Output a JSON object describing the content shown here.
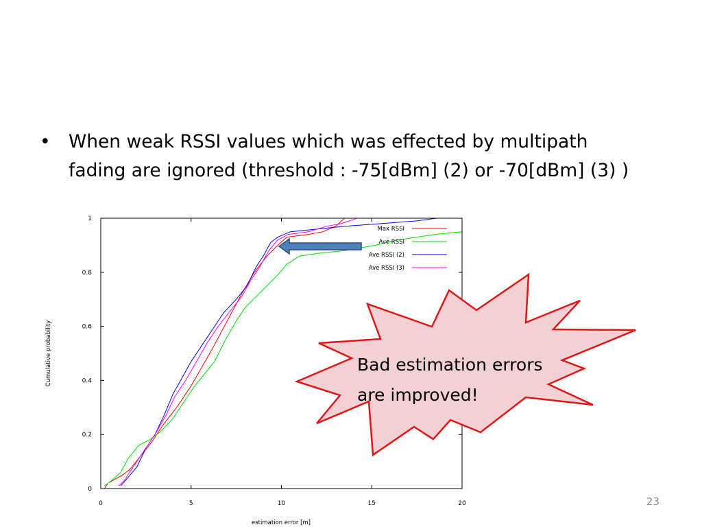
{
  "slide": {
    "bullet": "•",
    "bullet_lines": [
      "When weak RSSI values which was effected by multipath",
      "fading are ignored (threshold : -75[dBm] (2) or -70[dBm] (3) )"
    ],
    "callout_lines": [
      "Bad estimation errors",
      "are improved!"
    ],
    "page_number": "23",
    "colors": {
      "callout_fill": "#f2d0d3",
      "callout_stroke": "#e01616",
      "arrow_fill": "#4f81bd",
      "arrow_stroke": "#2c4d75"
    }
  },
  "chart_data": {
    "type": "line",
    "title": "",
    "xlabel": "estimation error [m]",
    "ylabel": "Cumulative probability",
    "xlim": [
      0,
      20
    ],
    "ylim": [
      0,
      1
    ],
    "x_ticks": [
      "0",
      "5",
      "10",
      "15",
      "20"
    ],
    "y_ticks": [
      "0",
      "0.2",
      "0.4",
      "0.6",
      "0.8",
      "1"
    ],
    "grid": false,
    "legend_position": "top-right",
    "series": [
      {
        "name": "Max RSSI",
        "color": "#ff0000",
        "points": [
          [
            0.2,
            0.0
          ],
          [
            0.4,
            0.02
          ],
          [
            1.2,
            0.05
          ],
          [
            1.6,
            0.07
          ],
          [
            2.2,
            0.12
          ],
          [
            2.8,
            0.17
          ],
          [
            3.5,
            0.24
          ],
          [
            4.2,
            0.3
          ],
          [
            5.0,
            0.38
          ],
          [
            5.6,
            0.45
          ],
          [
            6.2,
            0.52
          ],
          [
            7.0,
            0.62
          ],
          [
            7.8,
            0.72
          ],
          [
            8.5,
            0.8
          ],
          [
            9.2,
            0.86
          ],
          [
            9.8,
            0.9
          ],
          [
            10.3,
            0.93
          ],
          [
            11.5,
            0.94
          ],
          [
            12.3,
            0.95
          ],
          [
            13.0,
            0.97
          ],
          [
            13.5,
            1.0
          ],
          [
            20,
            1.0
          ]
        ]
      },
      {
        "name": "Ave RSSI",
        "color": "#00dd00",
        "points": [
          [
            0.2,
            0.01
          ],
          [
            0.6,
            0.03
          ],
          [
            1.1,
            0.06
          ],
          [
            1.5,
            0.11
          ],
          [
            2.1,
            0.16
          ],
          [
            2.7,
            0.18
          ],
          [
            3.3,
            0.21
          ],
          [
            4.0,
            0.26
          ],
          [
            4.6,
            0.32
          ],
          [
            5.2,
            0.38
          ],
          [
            5.7,
            0.42
          ],
          [
            6.3,
            0.47
          ],
          [
            6.9,
            0.55
          ],
          [
            7.5,
            0.62
          ],
          [
            8.0,
            0.67
          ],
          [
            8.6,
            0.71
          ],
          [
            9.2,
            0.75
          ],
          [
            9.8,
            0.79
          ],
          [
            10.3,
            0.83
          ],
          [
            11.0,
            0.86
          ],
          [
            12.0,
            0.87
          ],
          [
            13.5,
            0.88
          ],
          [
            15.2,
            0.9
          ],
          [
            16.5,
            0.92
          ],
          [
            17.5,
            0.93
          ],
          [
            18.5,
            0.94
          ],
          [
            20,
            0.95
          ]
        ]
      },
      {
        "name": "Ave RSSI (2)",
        "color": "#0000ff",
        "points": [
          [
            1.1,
            0.01
          ],
          [
            1.5,
            0.04
          ],
          [
            2.0,
            0.08
          ],
          [
            2.5,
            0.15
          ],
          [
            3.0,
            0.2
          ],
          [
            3.5,
            0.27
          ],
          [
            4.0,
            0.35
          ],
          [
            4.5,
            0.41
          ],
          [
            5.0,
            0.47
          ],
          [
            5.6,
            0.53
          ],
          [
            6.2,
            0.59
          ],
          [
            6.8,
            0.65
          ],
          [
            7.5,
            0.7
          ],
          [
            8.1,
            0.75
          ],
          [
            8.6,
            0.82
          ],
          [
            9.0,
            0.86
          ],
          [
            9.4,
            0.91
          ],
          [
            9.8,
            0.93
          ],
          [
            10.5,
            0.95
          ],
          [
            12.0,
            0.96
          ],
          [
            13.5,
            0.97
          ],
          [
            15.5,
            0.98
          ],
          [
            17.5,
            0.99
          ],
          [
            18.6,
            1.0
          ],
          [
            20,
            1.0
          ]
        ]
      },
      {
        "name": "Ave RSSI (3)",
        "color": "#ff00ff",
        "points": [
          [
            1.0,
            0.01
          ],
          [
            1.3,
            0.03
          ],
          [
            1.8,
            0.08
          ],
          [
            2.4,
            0.14
          ],
          [
            3.0,
            0.2
          ],
          [
            3.6,
            0.27
          ],
          [
            4.1,
            0.34
          ],
          [
            4.7,
            0.4
          ],
          [
            5.3,
            0.47
          ],
          [
            5.9,
            0.54
          ],
          [
            6.5,
            0.6
          ],
          [
            7.2,
            0.66
          ],
          [
            7.8,
            0.71
          ],
          [
            8.3,
            0.77
          ],
          [
            8.8,
            0.82
          ],
          [
            9.3,
            0.88
          ],
          [
            9.8,
            0.92
          ],
          [
            10.4,
            0.94
          ],
          [
            11.5,
            0.95
          ],
          [
            12.5,
            0.97
          ],
          [
            13.3,
            0.98
          ],
          [
            14.2,
            1.0
          ],
          [
            20,
            1.0
          ]
        ]
      }
    ]
  }
}
